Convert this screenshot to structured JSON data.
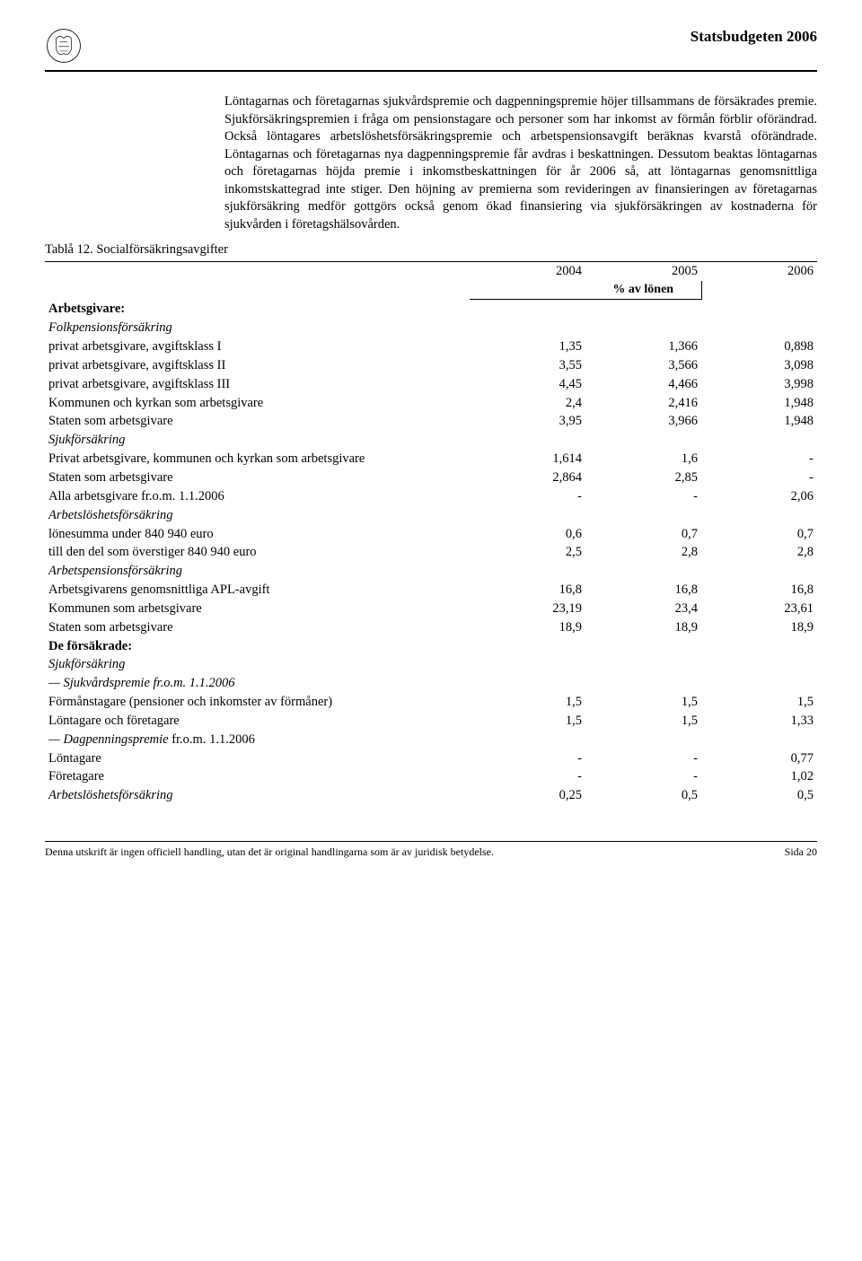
{
  "header": {
    "doc_title": "Statsbudgeten 2006"
  },
  "paragraph": "Löntagarnas och företagarnas sjukvårdspremie och dagpenningspremie höjer tillsammans de försäkrades premie. Sjukförsäkringspremien i fråga om pensionstagare och personer som har inkomst av förmån förblir oförändrad. Också löntagares arbetslöshetsförsäkringspremie och arbetspensionsavgift beräknas kvarstå oförändrade. Löntagarnas och företagarnas nya dagpenningspremie får avdras i beskattningen. Dessutom beaktas löntagarnas och företagarnas höjda premie i inkomstbeskattningen för år 2006 så, att löntagarnas genomsnittliga inkomstskattegrad inte stiger. Den höjning av premierna som revideringen av finansieringen av företagarnas sjukförsäkring medför gottgörs också genom ökad finansiering via sjukförsäkringen av kostnaderna för sjukvården i företagshälsovården.",
  "table": {
    "caption": "Tablå 12. Socialförsäkringsavgifter",
    "years": [
      "2004",
      "2005",
      "2006"
    ],
    "subheader": "% av lönen",
    "sections": {
      "arbetsgivare": {
        "title": "Arbetsgivare:",
        "groups": [
          {
            "title": "Folkpensionsförsäkring",
            "italic": true,
            "rows": [
              {
                "label": "privat arbetsgivare, avgiftsklass I",
                "v": [
                  "1,35",
                  "1,366",
                  "0,898"
                ]
              },
              {
                "label": "privat arbetsgivare, avgiftsklass II",
                "v": [
                  "3,55",
                  "3,566",
                  "3,098"
                ]
              },
              {
                "label": "privat arbetsgivare, avgiftsklass III",
                "v": [
                  "4,45",
                  "4,466",
                  "3,998"
                ]
              },
              {
                "label": "Kommunen och kyrkan som arbetsgivare",
                "v": [
                  "2,4",
                  "2,416",
                  "1,948"
                ]
              },
              {
                "label": "Staten som arbetsgivare",
                "v": [
                  "3,95",
                  "3,966",
                  "1,948"
                ]
              }
            ]
          },
          {
            "title": "Sjukförsäkring",
            "italic": true,
            "rows": [
              {
                "label": "Privat arbetsgivare, kommunen och kyrkan som arbetsgivare",
                "v": [
                  "1,614",
                  "1,6",
                  "-"
                ]
              },
              {
                "label": "Staten som arbetsgivare",
                "v": [
                  "2,864",
                  "2,85",
                  "-"
                ]
              },
              {
                "label": "Alla arbetsgivare fr.o.m. 1.1.2006",
                "v": [
                  "-",
                  "-",
                  "2,06"
                ]
              }
            ]
          },
          {
            "title": "Arbetslöshetsförsäkring",
            "italic": true,
            "rows": [
              {
                "label": "lönesumma under 840 940 euro",
                "v": [
                  "0,6",
                  "0,7",
                  "0,7"
                ]
              },
              {
                "label": "till den del som överstiger 840 940 euro",
                "v": [
                  "2,5",
                  "2,8",
                  "2,8"
                ]
              }
            ]
          },
          {
            "title": "Arbetspensionsförsäkring",
            "italic": true,
            "rows": [
              {
                "label": "Arbetsgivarens genomsnittliga APL-avgift",
                "v": [
                  "16,8",
                  "16,8",
                  "16,8"
                ]
              },
              {
                "label": "Kommunen som arbetsgivare",
                "v": [
                  "23,19",
                  "23,4",
                  "23,61"
                ]
              },
              {
                "label": "Staten som arbetsgivare",
                "v": [
                  "18,9",
                  "18,9",
                  "18,9"
                ]
              }
            ]
          }
        ]
      },
      "forsakrade": {
        "title": "De försäkrade:",
        "groups": [
          {
            "title": "Sjukförsäkring",
            "italic": true,
            "rows": [
              {
                "label": "— Sjukvårdspremie fr.o.m. 1.1.2006",
                "italic": true,
                "v": [
                  "",
                  "",
                  ""
                ]
              },
              {
                "label": "Förmånstagare (pensioner och inkomster av förmåner)",
                "v": [
                  "1,5",
                  "1,5",
                  "1,5"
                ]
              },
              {
                "label": "Löntagare och företagare",
                "v": [
                  "1,5",
                  "1,5",
                  "1,33"
                ]
              },
              {
                "label": "— Dagpenningspremie fr.o.m. 1.1.2006",
                "mixed_italic": true,
                "italic_part": "— Dagpenningspremie",
                "plain_part": " fr.o.m. 1.1.2006",
                "v": [
                  "",
                  "",
                  ""
                ]
              },
              {
                "label": "Löntagare",
                "v": [
                  "-",
                  "-",
                  "0,77"
                ]
              },
              {
                "label": "Företagare",
                "v": [
                  "-",
                  "-",
                  "1,02"
                ]
              }
            ]
          },
          {
            "title": "Arbetslöshetsförsäkring",
            "italic": true,
            "inline_values": [
              "0,25",
              "0,5",
              "0,5"
            ]
          }
        ]
      }
    }
  },
  "footer": {
    "left": "Denna utskrift är ingen officiell handling, utan det är original handlingarna som är av juridisk betydelse.",
    "right": "Sida 20"
  }
}
